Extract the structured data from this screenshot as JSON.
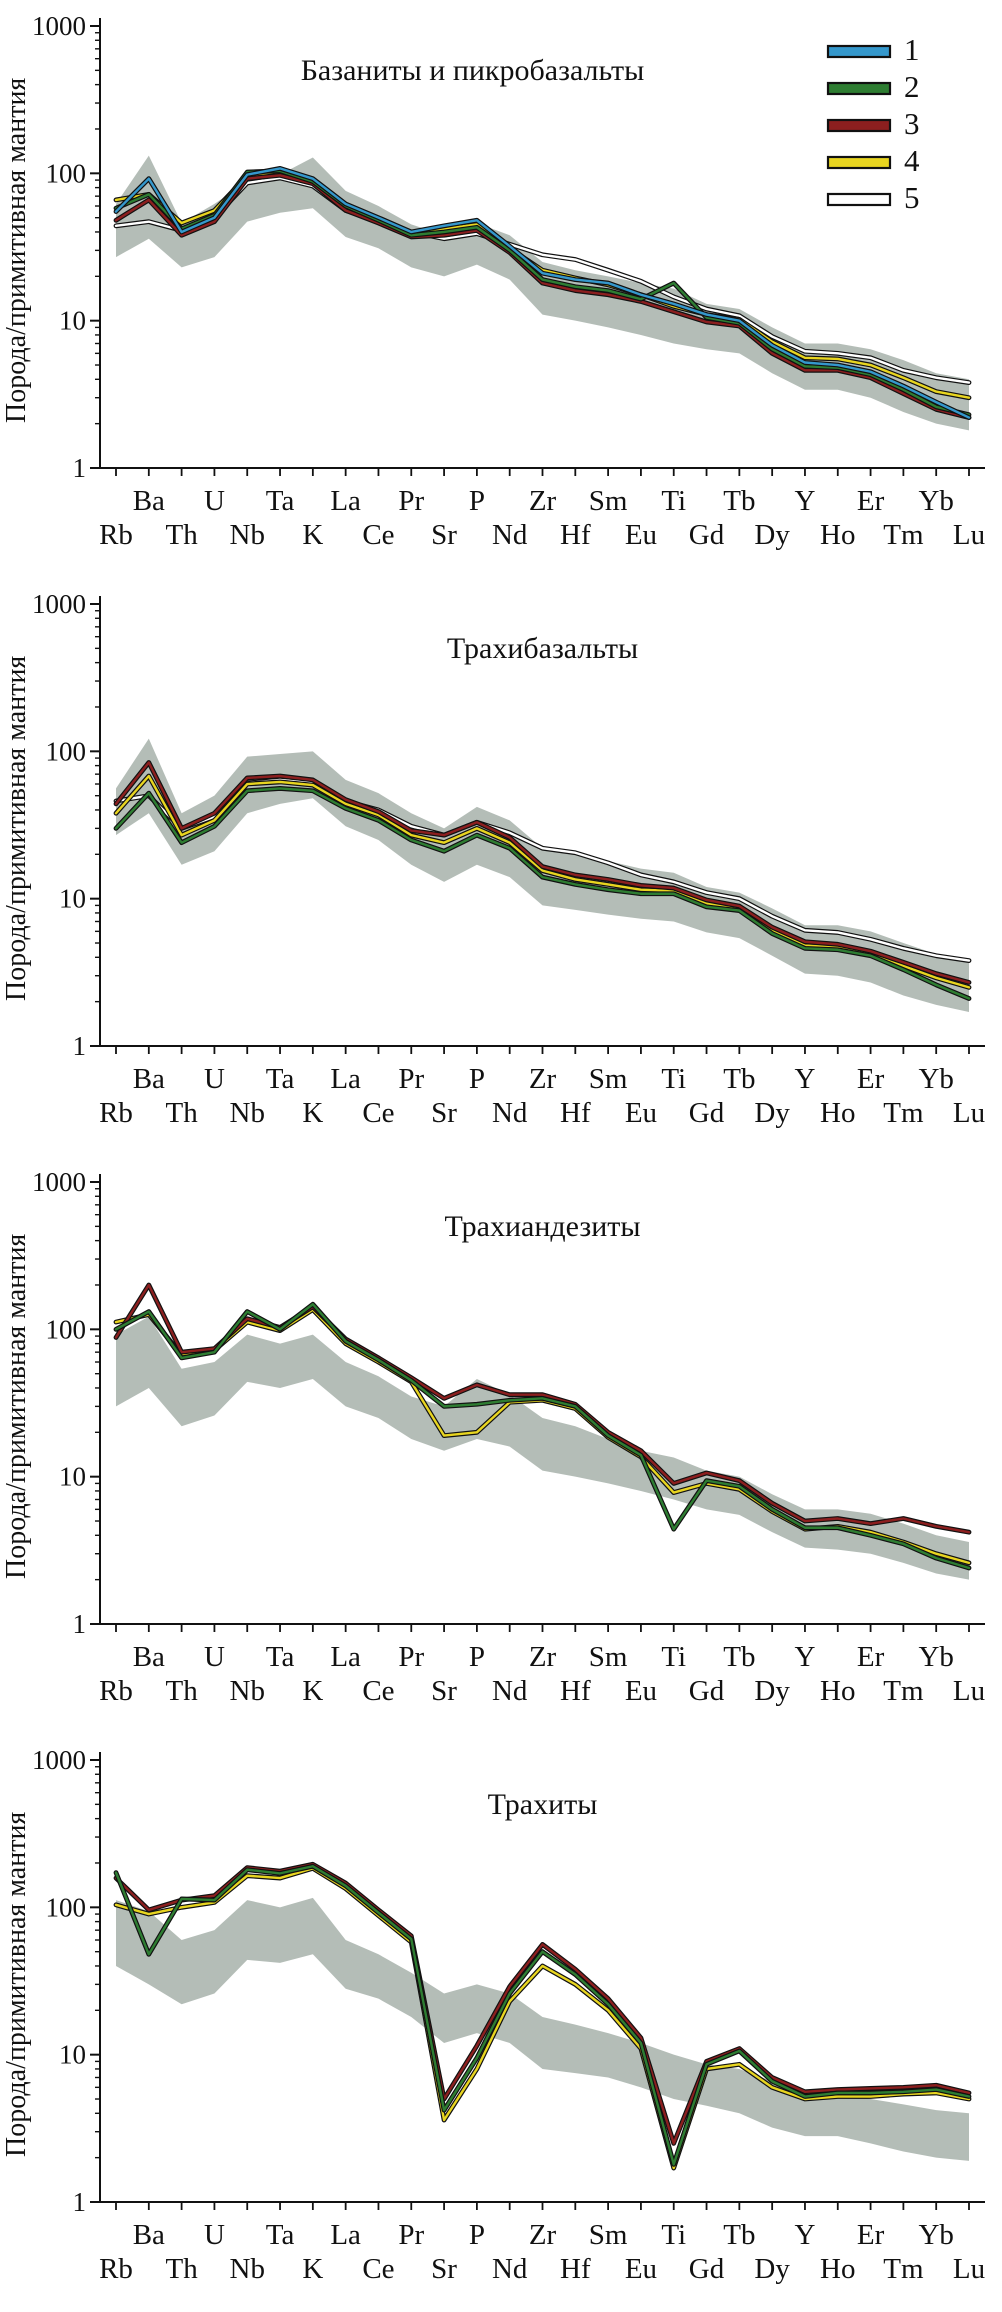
{
  "figure": {
    "y_axis_label": "Порода/примитивная мантия",
    "legend": [
      {
        "label": "1",
        "color": "#3598cc"
      },
      {
        "label": "2",
        "color": "#2e7d32"
      },
      {
        "label": "3",
        "color": "#8c1f1f"
      },
      {
        "label": "4",
        "color": "#e8d520"
      },
      {
        "label": "5",
        "color": "#ffffff"
      }
    ],
    "field_color": "#b4bdb7"
  },
  "chart_data": [
    {
      "type": "line",
      "title": "Базаниты и пикробазальты",
      "ylabel": "Порода/примитивная мантия",
      "ylim": [
        1,
        1000
      ],
      "yticks": [
        1,
        10,
        100,
        1000
      ],
      "yscale": "log",
      "grid": false,
      "legend_position": "top-right",
      "categories": [
        "Rb",
        "Ba",
        "Th",
        "U",
        "Nb",
        "Ta",
        "K",
        "La",
        "Ce",
        "Pr",
        "Sr",
        "P",
        "Nd",
        "Zr",
        "Hf",
        "Sm",
        "Eu",
        "Ti",
        "Gd",
        "Tb",
        "Dy",
        "Y",
        "Ho",
        "Er",
        "Tm",
        "Yb",
        "Lu"
      ],
      "field": {
        "name": "gray-field",
        "color": "#b4bdb7",
        "lower": [
          27,
          36,
          23,
          27,
          47,
          54,
          58,
          37,
          31,
          23,
          20,
          24,
          19,
          11,
          10,
          9,
          8,
          7,
          6.4,
          6,
          4.4,
          3.4,
          3.4,
          3,
          2.4,
          2,
          1.8
        ],
        "upper": [
          62,
          132,
          46,
          62,
          88,
          98,
          128,
          76,
          60,
          45,
          38,
          46,
          38,
          25,
          22,
          20,
          18,
          16.5,
          13,
          12,
          9,
          7,
          7,
          6.4,
          5.4,
          4.4,
          4
        ]
      },
      "series": [
        {
          "name": "1",
          "color": "#3598cc",
          "values": [
            55,
            92,
            40,
            50,
            98,
            108,
            92,
            62,
            50,
            40,
            44,
            48,
            32,
            21,
            19,
            18,
            15,
            13,
            11,
            10,
            6.8,
            5.2,
            5,
            4.5,
            3.6,
            2.8,
            2.2
          ]
        },
        {
          "name": "2",
          "color": "#2e7d32",
          "values": [
            58,
            72,
            42,
            52,
            102,
            104,
            88,
            60,
            48,
            38,
            40,
            43,
            30,
            19,
            17,
            16,
            14,
            18,
            10.5,
            9.6,
            6.4,
            4.9,
            4.8,
            4.3,
            3.4,
            2.6,
            2.3
          ]
        },
        {
          "name": "3",
          "color": "#8c1f1f",
          "values": [
            48,
            66,
            38,
            47,
            92,
            97,
            85,
            56,
            46,
            37,
            38,
            41,
            29,
            18,
            16,
            15,
            13.5,
            11.5,
            9.8,
            9.2,
            6,
            4.6,
            4.6,
            4.1,
            3.2,
            2.5,
            2.2
          ]
        },
        {
          "name": "4",
          "color": "#e8d520",
          "values": [
            66,
            72,
            46,
            56,
            96,
            101,
            89,
            58,
            48,
            39,
            42,
            45,
            31,
            22,
            19.5,
            17.5,
            15,
            12.5,
            11,
            10.2,
            7.2,
            5.6,
            5.5,
            5,
            4.1,
            3.3,
            3
          ]
        },
        {
          "name": "5",
          "color": "#ffffff",
          "values": [
            44,
            47,
            41,
            50,
            86,
            93,
            82,
            56,
            47,
            40,
            36,
            39,
            33,
            28,
            26,
            22,
            18.5,
            14.5,
            12,
            10.8,
            7.8,
            6.2,
            6,
            5.6,
            4.6,
            4.1,
            3.8
          ]
        }
      ]
    },
    {
      "type": "line",
      "title": "Трахибазальты",
      "ylabel": "Порода/примитивная мантия",
      "ylim": [
        1,
        1000
      ],
      "yticks": [
        1,
        10,
        100,
        1000
      ],
      "yscale": "log",
      "grid": false,
      "legend_position": null,
      "categories": [
        "Rb",
        "Ba",
        "Th",
        "U",
        "Nb",
        "Ta",
        "K",
        "La",
        "Ce",
        "Pr",
        "Sr",
        "P",
        "Nd",
        "Zr",
        "Hf",
        "Sm",
        "Eu",
        "Ti",
        "Gd",
        "Tb",
        "Dy",
        "Y",
        "Ho",
        "Er",
        "Tm",
        "Yb",
        "Lu"
      ],
      "field": {
        "name": "gray-field",
        "color": "#b4bdb7",
        "lower": [
          27,
          38,
          17,
          21,
          38,
          44,
          48,
          31,
          25,
          17,
          13,
          17,
          14,
          9,
          8.4,
          7.8,
          7.3,
          7,
          5.9,
          5.4,
          4.1,
          3.1,
          3,
          2.7,
          2.2,
          1.9,
          1.7
        ],
        "upper": [
          56,
          122,
          38,
          50,
          92,
          96,
          100,
          64,
          52,
          38,
          30,
          42,
          34,
          22,
          20,
          18,
          16,
          15,
          12,
          11,
          8.6,
          6.6,
          6.6,
          6,
          5,
          4.2,
          3.8
        ]
      },
      "series": [
        {
          "name": "2",
          "color": "#2e7d32",
          "values": [
            30,
            52,
            24,
            31,
            54,
            56,
            54,
            41,
            34,
            25,
            21,
            27,
            22,
            14,
            12.5,
            11.5,
            10.8,
            10.8,
            8.8,
            8.3,
            5.8,
            4.6,
            4.5,
            4.1,
            3.3,
            2.6,
            2.1
          ]
        },
        {
          "name": "3",
          "color": "#8c1f1f",
          "values": [
            44,
            84,
            30,
            38,
            66,
            68,
            64,
            47,
            39,
            29,
            27,
            33,
            26,
            16.5,
            14.5,
            13.5,
            12.3,
            11.8,
            9.8,
            8.9,
            6.4,
            5.1,
            4.9,
            4.4,
            3.7,
            3.1,
            2.7
          ]
        },
        {
          "name": "4",
          "color": "#e8d520",
          "values": [
            38,
            68,
            27,
            34,
            60,
            62,
            59,
            44,
            37,
            27,
            24,
            30,
            24,
            15.5,
            13.5,
            12.5,
            11.5,
            11.3,
            9.3,
            8.6,
            6.1,
            4.8,
            4.7,
            4.3,
            3.5,
            2.9,
            2.5
          ]
        },
        {
          "name": "5",
          "color": "#ffffff",
          "values": [
            46,
            50,
            30,
            36,
            61,
            64,
            61,
            46,
            40,
            31,
            27,
            33,
            28,
            22,
            20.5,
            17.5,
            14.5,
            13,
            11,
            10,
            7.6,
            6.1,
            5.9,
            5.3,
            4.6,
            4.1,
            3.8
          ]
        }
      ]
    },
    {
      "type": "line",
      "title": "Трахиандезиты",
      "ylabel": "Порода/примитивная мантия",
      "ylim": [
        1,
        1000
      ],
      "yticks": [
        1,
        10,
        100,
        1000
      ],
      "yscale": "log",
      "grid": false,
      "legend_position": null,
      "categories": [
        "Rb",
        "Ba",
        "Th",
        "U",
        "Nb",
        "Ta",
        "K",
        "La",
        "Ce",
        "Pr",
        "Sr",
        "P",
        "Nd",
        "Zr",
        "Hf",
        "Sm",
        "Eu",
        "Ti",
        "Gd",
        "Tb",
        "Dy",
        "Y",
        "Ho",
        "Er",
        "Tm",
        "Yb",
        "Lu"
      ],
      "field": {
        "name": "gray-field",
        "color": "#b4bdb7",
        "lower": [
          30,
          40,
          22,
          26,
          44,
          40,
          46,
          30,
          25,
          18,
          15,
          18,
          16,
          11,
          10,
          9,
          8,
          7,
          6,
          5.5,
          4.2,
          3.3,
          3.2,
          3,
          2.6,
          2.2,
          2
        ],
        "upper": [
          92,
          122,
          54,
          60,
          92,
          80,
          92,
          60,
          48,
          35,
          30,
          46,
          36,
          25,
          22,
          18,
          15,
          13.5,
          11,
          10,
          7.6,
          6,
          6,
          5.6,
          4.8,
          4,
          3.6
        ]
      },
      "series": [
        {
          "name": "2",
          "color": "#2e7d32",
          "values": [
            100,
            132,
            64,
            70,
            132,
            100,
            148,
            83,
            62,
            45,
            30,
            31,
            33,
            34,
            30,
            19,
            14,
            4.4,
            9.4,
            8.6,
            6,
            4.5,
            4.5,
            4,
            3.5,
            2.8,
            2.4
          ]
        },
        {
          "name": "3",
          "color": "#8c1f1f",
          "values": [
            88,
            200,
            70,
            74,
            118,
            103,
            142,
            86,
            64,
            47,
            34,
            42,
            36,
            36,
            31,
            20,
            15,
            9,
            10.6,
            9.4,
            6.6,
            5,
            5.2,
            4.8,
            5.2,
            4.6,
            4.2
          ]
        },
        {
          "name": "4",
          "color": "#e8d520",
          "values": [
            112,
            126,
            67,
            72,
            112,
            98,
            136,
            80,
            60,
            44,
            19,
            20,
            32,
            33,
            29,
            18.5,
            13.6,
            7.8,
            9,
            8.2,
            5.8,
            4.4,
            4.6,
            4.2,
            3.6,
            3,
            2.6
          ]
        }
      ]
    },
    {
      "type": "line",
      "title": "Трахиты",
      "ylabel": "Порода/примитивная мантия",
      "ylim": [
        1,
        1000
      ],
      "yticks": [
        1,
        10,
        100,
        1000
      ],
      "yscale": "log",
      "grid": false,
      "legend_position": null,
      "categories": [
        "Rb",
        "Ba",
        "Th",
        "U",
        "Nb",
        "Ta",
        "K",
        "La",
        "Ce",
        "Pr",
        "Sr",
        "P",
        "Nd",
        "Zr",
        "Hf",
        "Sm",
        "Eu",
        "Ti",
        "Gd",
        "Tb",
        "Dy",
        "Y",
        "Ho",
        "Er",
        "Tm",
        "Yb",
        "Lu"
      ],
      "field": {
        "name": "gray-field",
        "color": "#b4bdb7",
        "lower": [
          40,
          30,
          22,
          26,
          44,
          42,
          48,
          28,
          24,
          18,
          12,
          14,
          12,
          8,
          7.5,
          7,
          6,
          5,
          4.5,
          4,
          3.2,
          2.8,
          2.8,
          2.5,
          2.2,
          2,
          1.9
        ],
        "upper": [
          112,
          94,
          60,
          70,
          112,
          100,
          116,
          60,
          48,
          36,
          26,
          30,
          26,
          18,
          16,
          14,
          12,
          10,
          8.6,
          8,
          6.6,
          5.6,
          5.4,
          5,
          4.6,
          4.2,
          4
        ]
      },
      "series": [
        {
          "name": "2",
          "color": "#2e7d32",
          "values": [
            172,
            48,
            114,
            112,
            180,
            170,
            190,
            140,
            92,
            61,
            4.2,
            9.5,
            26,
            50,
            35,
            22,
            12,
            1.8,
            8.6,
            10.6,
            6.6,
            5.2,
            5.5,
            5.5,
            5.6,
            5.8,
            5.2
          ]
        },
        {
          "name": "3",
          "color": "#8c1f1f",
          "values": [
            158,
            96,
            112,
            120,
            186,
            176,
            196,
            146,
            96,
            64,
            5,
            11.5,
            29,
            56,
            38,
            24,
            13,
            2.5,
            9,
            11,
            7,
            5.6,
            5.8,
            5.9,
            6,
            6.2,
            5.5
          ]
        },
        {
          "name": "4",
          "color": "#e8d520",
          "values": [
            104,
            90,
            100,
            108,
            164,
            158,
            184,
            134,
            88,
            58,
            3.6,
            8,
            23,
            40,
            30,
            20,
            11,
            1.7,
            8,
            8.6,
            6,
            5,
            5.2,
            5.2,
            5.4,
            5.5,
            5
          ]
        }
      ]
    }
  ]
}
